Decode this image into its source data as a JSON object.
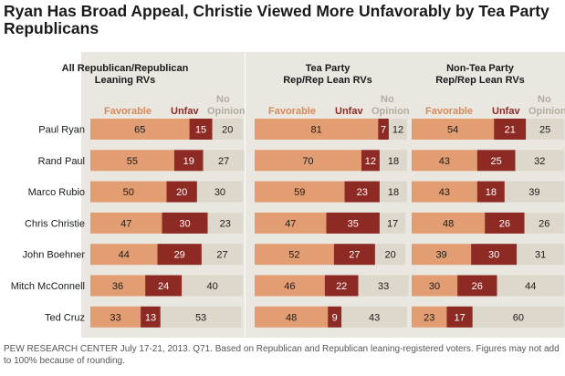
{
  "title": "Ryan Has Broad Appeal, Christie Viewed More Unfavorably by Tea Party Republicans",
  "footer": "PEW RESEARCH CENTER July 17-21, 2013. Q71. Based on Republican and Republican leaning-registered voters. Figures may not add to 100% because of rounding.",
  "colors": {
    "favorable": "#e39d72",
    "unfavorable": "#8e2a24",
    "no_opinion": "#ddd8cb",
    "band": "#e9e7e0",
    "favorable_label": "#d8895a",
    "unfavorable_label": "#8e2a24",
    "no_opinion_label": "#b3ada0"
  },
  "chart_data": {
    "type": "bar",
    "stacked": true,
    "orientation": "horizontal",
    "categories": [
      "Paul Ryan",
      "Rand Paul",
      "Marco Rubio",
      "Chris Christie",
      "John Boehner",
      "Mitch McConnell",
      "Ted Cruz"
    ],
    "legend": [
      "Favorable",
      "Unfav",
      "No Opinion"
    ],
    "panels": [
      {
        "title": "All Republican/Republican Leaning RVs",
        "series": [
          {
            "name": "Favorable",
            "values": [
              65,
              55,
              50,
              47,
              44,
              36,
              33
            ]
          },
          {
            "name": "Unfav",
            "values": [
              15,
              19,
              20,
              30,
              29,
              24,
              13
            ]
          },
          {
            "name": "No Opinion",
            "values": [
              20,
              27,
              30,
              23,
              27,
              40,
              53
            ]
          }
        ]
      },
      {
        "title": "Tea Party Rep/Rep Lean RVs",
        "series": [
          {
            "name": "Favorable",
            "values": [
              81,
              70,
              59,
              47,
              52,
              46,
              48
            ]
          },
          {
            "name": "Unfav",
            "values": [
              7,
              12,
              23,
              35,
              27,
              22,
              9
            ]
          },
          {
            "name": "No Opinion",
            "values": [
              12,
              18,
              18,
              17,
              20,
              33,
              43
            ]
          }
        ]
      },
      {
        "title": "Non-Tea Party Rep/Rep Lean RVs",
        "series": [
          {
            "name": "Favorable",
            "values": [
              54,
              43,
              43,
              48,
              39,
              30,
              23
            ]
          },
          {
            "name": "Unfav",
            "values": [
              21,
              25,
              18,
              26,
              30,
              26,
              17
            ]
          },
          {
            "name": "No Opinion",
            "values": [
              25,
              32,
              39,
              26,
              31,
              44,
              60
            ]
          }
        ]
      }
    ]
  }
}
